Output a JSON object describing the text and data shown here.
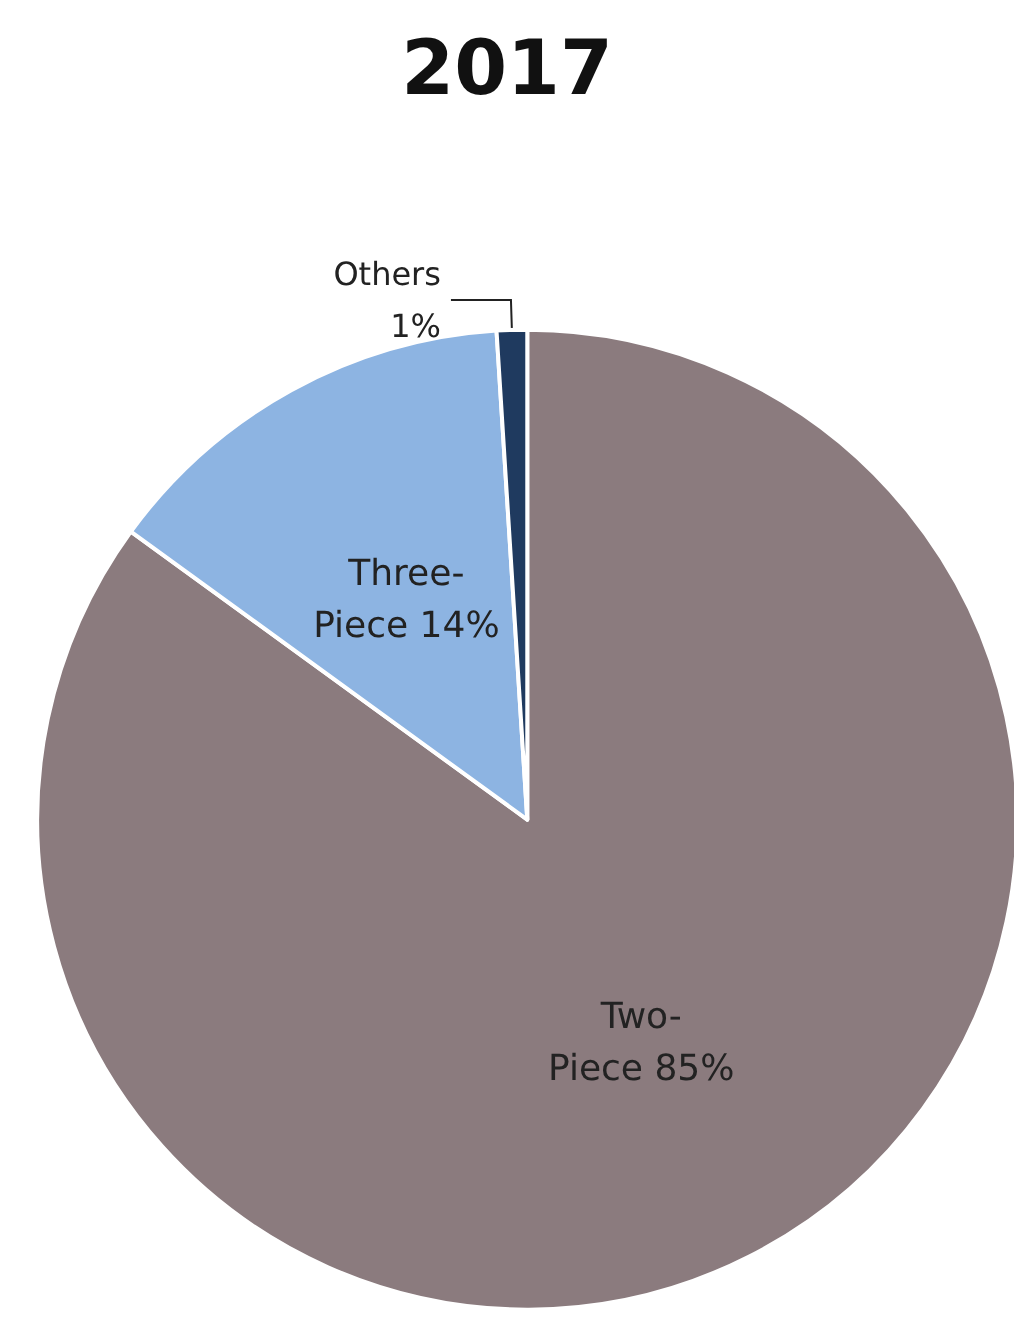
{
  "chart_data": {
    "type": "pie",
    "title": "2017",
    "categories": [
      "Two-Piece",
      "Three-Piece",
      "Others"
    ],
    "values": [
      85,
      14,
      1
    ],
    "colors": [
      "#8b7b7e",
      "#8db4e2",
      "#1f3a5f"
    ],
    "value_labels": [
      "85%",
      "14%",
      "1%"
    ],
    "legend": false
  }
}
